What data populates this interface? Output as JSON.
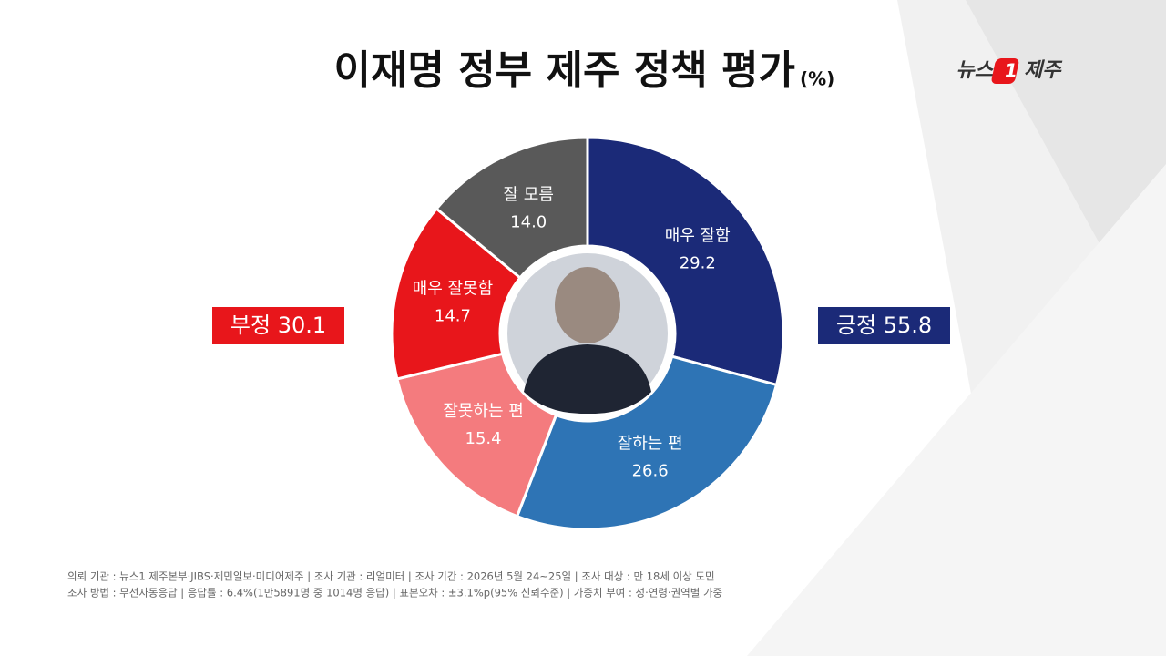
{
  "chart_data": {
    "type": "donut",
    "title": "이재명 정부 제주 정책 평가",
    "unit": "(%)",
    "logo": [
      "뉴스",
      "1",
      "제주"
    ],
    "categories": [
      "매우 잘함",
      "잘하는 편",
      "잘못하는 편",
      "매우 잘못함",
      "잘 모름"
    ],
    "values": [
      29.2,
      26.6,
      15.4,
      14.7,
      14.0
    ],
    "value_labels": [
      "29.2",
      "26.6",
      "15.4",
      "14.7",
      "14.0"
    ],
    "colors": [
      "#1b2a78",
      "#2e74b5",
      "#f47b7e",
      "#e8161b",
      "#595959"
    ],
    "summaries": [
      {
        "label": "부정",
        "value": 30.1,
        "color": "#e8161b"
      },
      {
        "label": "긍정",
        "value": 55.8,
        "color": "#1b2a78"
      }
    ],
    "footnotes": [
      "의뢰 기관 : 뉴스1 제주본부·JIBS·제민일보·미디어제주  |  조사 기관 : 리얼미터  |  조사 기간 : 2026년 5월 24~25일  |  조사 대상 : 만 18세 이상 도민",
      "조사 방법 : 무선자동응답  |  응답률 : 6.4%(1만5891명 중 1014명 응답)  |  표본오차 : ±3.1%p(95% 신뢰수준)  |  가중치 부여 : 성·연령·권역별 가중"
    ]
  }
}
